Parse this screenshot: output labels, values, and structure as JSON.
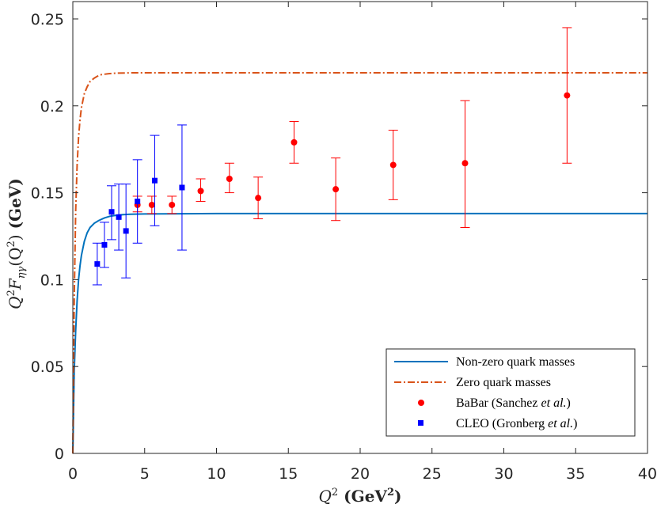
{
  "chart_data": {
    "type": "line",
    "title": "",
    "xlabel": "Q² (GeV²)",
    "ylabel": "Q²F_ηγ(Q²) (GeV)",
    "xlim": [
      0,
      40
    ],
    "ylim": [
      0,
      0.26
    ],
    "grid": false,
    "x_ticks": [
      0,
      5,
      10,
      15,
      20,
      25,
      30,
      35,
      40
    ],
    "y_ticks": [
      0,
      0.05,
      0.1,
      0.15,
      0.2,
      0.25
    ],
    "x_tick_labels": [
      "0",
      "5",
      "10",
      "15",
      "20",
      "25",
      "30",
      "35",
      "40"
    ],
    "y_tick_labels": [
      "0",
      "0.05",
      "0.1",
      "0.15",
      "0.2",
      "0.25"
    ],
    "legend_position": "bottom-right",
    "series": [
      {
        "name": "Non-zero quark masses",
        "kind": "line",
        "color": "#0072BD",
        "dash": "solid",
        "asymptote": 0.138,
        "x": [
          0,
          0.1,
          0.2,
          0.3,
          0.4,
          0.5,
          0.6,
          0.8,
          1.0,
          1.2,
          1.5,
          1.8,
          2.2,
          2.6,
          3.0,
          3.5,
          4.0,
          5,
          10,
          20,
          30,
          40
        ],
        "values": [
          0,
          0.048,
          0.071,
          0.088,
          0.1,
          0.108,
          0.114,
          0.122,
          0.127,
          0.13,
          0.1325,
          0.134,
          0.1355,
          0.1365,
          0.137,
          0.1374,
          0.1376,
          0.1378,
          0.138,
          0.138,
          0.138,
          0.138
        ]
      },
      {
        "name": "Zero quark masses",
        "kind": "line",
        "color": "#D95319",
        "dash": "dashdot",
        "asymptote": 0.219,
        "x": [
          0,
          0.1,
          0.2,
          0.3,
          0.4,
          0.5,
          0.6,
          0.8,
          1.0,
          1.2,
          1.5,
          1.8,
          2.0,
          2.5,
          3.0,
          4.0,
          5,
          10,
          20,
          30,
          40
        ],
        "values": [
          0,
          0.09,
          0.14,
          0.166,
          0.182,
          0.192,
          0.199,
          0.207,
          0.211,
          0.214,
          0.216,
          0.2175,
          0.218,
          0.2185,
          0.2188,
          0.219,
          0.219,
          0.219,
          0.219,
          0.219,
          0.219
        ]
      },
      {
        "name": "BaBar (Sanchez et al.)",
        "kind": "errorbar",
        "marker": "circle",
        "color": "#FF0000",
        "x": [
          4.5,
          5.5,
          6.9,
          8.9,
          10.9,
          12.9,
          15.4,
          18.3,
          22.3,
          27.3,
          34.4
        ],
        "values": [
          0.143,
          0.143,
          0.143,
          0.151,
          0.158,
          0.147,
          0.179,
          0.152,
          0.166,
          0.167,
          0.206
        ],
        "err_low": [
          0.004,
          0.005,
          0.005,
          0.006,
          0.008,
          0.012,
          0.012,
          0.018,
          0.02,
          0.037,
          0.039
        ],
        "err_high": [
          0.005,
          0.005,
          0.005,
          0.007,
          0.009,
          0.012,
          0.012,
          0.018,
          0.02,
          0.036,
          0.039
        ]
      },
      {
        "name": "CLEO (Gronberg et al.)",
        "kind": "errorbar",
        "marker": "square",
        "color": "#0000FF",
        "x": [
          1.7,
          2.2,
          2.7,
          3.2,
          3.7,
          4.5,
          5.7,
          7.6
        ],
        "values": [
          0.109,
          0.12,
          0.139,
          0.136,
          0.128,
          0.145,
          0.157,
          0.153
        ],
        "err_low": [
          0.012,
          0.013,
          0.016,
          0.019,
          0.027,
          0.024,
          0.026,
          0.036
        ],
        "err_high": [
          0.012,
          0.013,
          0.015,
          0.019,
          0.027,
          0.024,
          0.026,
          0.036
        ]
      }
    ]
  },
  "legend": {
    "items": [
      {
        "label": "Non-zero quark masses"
      },
      {
        "label": "Zero quark masses"
      },
      {
        "label_pre": "BaBar (Sanchez ",
        "label_em": "et al.",
        "label_post": ")"
      },
      {
        "label_pre": "CLEO (Gronberg ",
        "label_em": "et al.",
        "label_post": ")"
      }
    ]
  },
  "axes": {
    "y_title_a": "Q",
    "y_title_sup": "2",
    "y_title_b": "F",
    "y_title_sub": "ηγ",
    "y_title_c": "(Q",
    "y_title_sup2": "2",
    "y_title_d": ")",
    "y_title_unit": " (GeV)",
    "x_title_a": "Q",
    "x_title_sup": "2",
    "x_title_unit_a": "  (GeV",
    "x_title_unit_sup": "2",
    "x_title_unit_b": ")"
  }
}
